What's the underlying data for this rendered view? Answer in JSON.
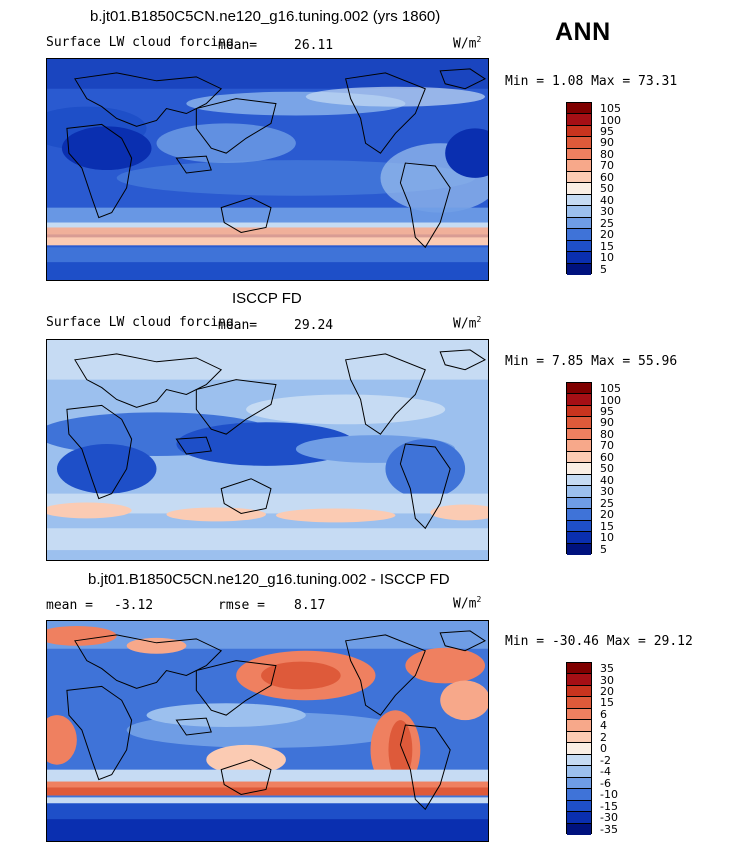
{
  "season": "ANN",
  "unit_base": "W/m",
  "unit_exp": "2",
  "panels": [
    {
      "title": "b.jt01.B1850C5CN.ne120_g16.tuning.002 (yrs 1860)",
      "variable": "Surface LW cloud forcing",
      "stat_label": "mean=",
      "stat_value": "26.11",
      "range_text": "Min =   1.08 Max =  73.31",
      "legend_labels": [
        "105",
        "100",
        "95",
        "90",
        "80",
        "70",
        "60",
        "50",
        "40",
        "30",
        "25",
        "20",
        "15",
        "10",
        "5"
      ],
      "legend_colors": [
        "#7f0000",
        "#a50f15",
        "#c8341e",
        "#de5a3a",
        "#ef8060",
        "#f7a88a",
        "#fbcbb3",
        "#faeee4",
        "#c6dbf3",
        "#9cc0ee",
        "#6f9de5",
        "#3f73d8",
        "#1e4fc8",
        "#0a2fb0",
        "#00127e"
      ]
    },
    {
      "title": "ISCCP FD",
      "variable": "Surface LW cloud forcing",
      "stat_label": "mean=",
      "stat_value": "29.24",
      "range_text": "Min =   7.85 Max =  55.96",
      "legend_labels": [
        "105",
        "100",
        "95",
        "90",
        "80",
        "70",
        "60",
        "50",
        "40",
        "30",
        "25",
        "20",
        "15",
        "10",
        "5"
      ],
      "legend_colors": [
        "#7f0000",
        "#a50f15",
        "#c8341e",
        "#de5a3a",
        "#ef8060",
        "#f7a88a",
        "#fbcbb3",
        "#faeee4",
        "#c6dbf3",
        "#9cc0ee",
        "#6f9de5",
        "#3f73d8",
        "#1e4fc8",
        "#0a2fb0",
        "#00127e"
      ]
    },
    {
      "title": "b.jt01.B1850C5CN.ne120_g16.tuning.002 - ISCCP FD",
      "variable": "",
      "mean_label": "mean =",
      "mean_value": "-3.12",
      "rmse_label": "rmse =",
      "rmse_value": "8.17",
      "range_text": "Min = -30.46 Max =  29.12",
      "legend_labels": [
        "35",
        "30",
        "20",
        "15",
        "6",
        "4",
        "2",
        "0",
        "-2",
        "-4",
        "-6",
        "-10",
        "-15",
        "-30",
        "-35"
      ],
      "legend_colors": [
        "#7f0000",
        "#a50f15",
        "#c8341e",
        "#de5a3a",
        "#ef8060",
        "#f7a88a",
        "#fbcbb3",
        "#faeee4",
        "#c6dbf3",
        "#9cc0ee",
        "#6f9de5",
        "#3f73d8",
        "#1e4fc8",
        "#0a2fb0",
        "#00127e"
      ]
    }
  ]
}
